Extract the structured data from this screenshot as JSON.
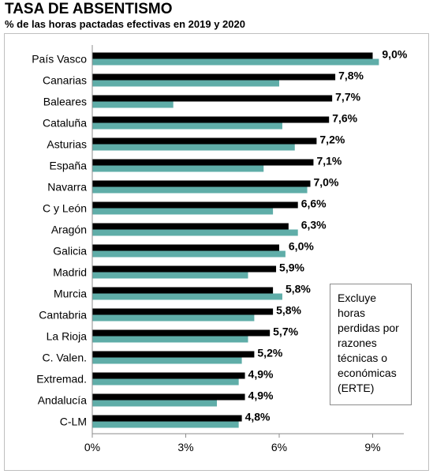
{
  "header": {
    "title": "TASA DE ABSENTISMO",
    "subtitle": "% de las horas pactadas efectivas en 2019 y 2020"
  },
  "note": {
    "text": "Excluye horas perdidas por razones técnicas o económicas (ERTE)"
  },
  "colors": {
    "series_2020": "#000000",
    "series_2019": "#5fada8",
    "axis": "#8c8c8c"
  },
  "chart_data": {
    "type": "bar",
    "orientation": "horizontal",
    "title": "TASA DE ABSENTISMO",
    "subtitle": "% de las horas pactadas efectivas en 2019 y 2020",
    "categories": [
      "País Vasco",
      "Canarias",
      "Baleares",
      "Cataluña",
      "Asturias",
      "España",
      "Navarra",
      "C y León",
      "Aragón",
      "Galicia",
      "Madrid",
      "Murcia",
      "Cantabria",
      "La Rioja",
      "C. Valen.",
      "Extremad.",
      "Andalucía",
      "C-LM"
    ],
    "series": [
      {
        "values": [
          9.0,
          7.8,
          7.7,
          7.6,
          7.2,
          7.1,
          7.0,
          6.6,
          6.3,
          6.0,
          5.9,
          5.8,
          5.8,
          5.7,
          5.2,
          4.9,
          4.9,
          4.8
        ],
        "color": "#000000"
      },
      {
        "values": [
          9.2,
          6.0,
          2.6,
          6.1,
          6.5,
          5.5,
          6.9,
          5.8,
          6.6,
          6.2,
          5.0,
          6.1,
          5.2,
          5.0,
          4.8,
          4.7,
          4.0,
          4.7
        ],
        "color": "#5fada8"
      }
    ],
    "data_labels": [
      "9,0%",
      "7,8%",
      "7,7%",
      "7,6%",
      "7,2%",
      "7,1%",
      "7,0%",
      "6,6%",
      "6,3%",
      "6,0%",
      "5,9%",
      "5,8%",
      "5,8%",
      "5,7%",
      "5,2%",
      "4,9%",
      "4,9%",
      "4,8%"
    ],
    "xlim": [
      0,
      10
    ],
    "xticks": [
      0,
      3,
      6,
      9
    ],
    "xtick_labels": [
      "0%",
      "3%",
      "6%",
      "9%"
    ],
    "xlabel": "",
    "ylabel": "",
    "grid": false,
    "legend": "none"
  }
}
